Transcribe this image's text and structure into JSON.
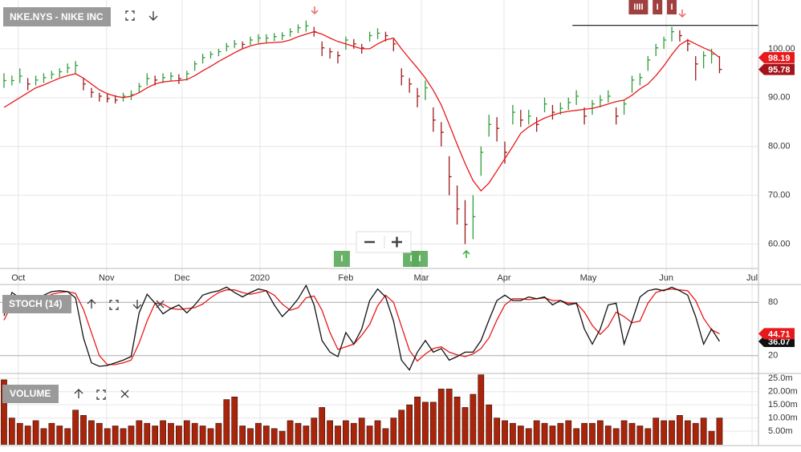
{
  "chart_data": [
    {
      "type": "ohlc",
      "title": "NKE.NYS - NIKE INC",
      "high": [
        95,
        94.5,
        96,
        94,
        94.5,
        95,
        95.5,
        96,
        97,
        97.5,
        94,
        92,
        91,
        90.8,
        90.5,
        91,
        91.5,
        93,
        95,
        94.5,
        95,
        95.2,
        94.8,
        95.5,
        97.5,
        99,
        99.5,
        100,
        101.2,
        101.8,
        101.5,
        102.5,
        103,
        103,
        103.2,
        103.4,
        104.2,
        105,
        105.8,
        104.5,
        101.5,
        100.2,
        99.5,
        102.5,
        102,
        101,
        103.5,
        104.2,
        103.5,
        102,
        96,
        94,
        92,
        93.5,
        88,
        85,
        78,
        72,
        69,
        70,
        80,
        86.5,
        86,
        81,
        88.5,
        87.5,
        87.5,
        86,
        90,
        88.5,
        89,
        90,
        91.5,
        88,
        89.5,
        90.5,
        91.5,
        88,
        89.5,
        94.5,
        95,
        98.5,
        101,
        102.5,
        104.5,
        103.8,
        102,
        98.5,
        99.5,
        100,
        98.5
      ],
      "low": [
        92,
        92.5,
        93,
        91.5,
        92.5,
        93,
        93.8,
        94.2,
        95,
        95,
        91.5,
        90,
        89.2,
        89,
        88.8,
        89.2,
        89.5,
        91,
        92.5,
        92.5,
        93,
        93.5,
        92.8,
        93.5,
        95.5,
        97,
        98,
        98.5,
        99.5,
        100.2,
        100,
        100.8,
        101.2,
        101.3,
        101.6,
        101.8,
        102.5,
        103.2,
        103.5,
        102.5,
        98.5,
        98,
        97,
        99.8,
        100,
        99,
        101.5,
        102,
        101.5,
        99.5,
        92.5,
        91,
        88,
        89.5,
        83,
        80,
        70,
        64,
        60,
        61,
        74,
        82,
        81,
        76.5,
        84.5,
        84,
        84.5,
        83,
        87,
        85.5,
        86.5,
        87.5,
        88.5,
        84.5,
        86.5,
        88,
        89,
        84.5,
        86.5,
        91,
        92.5,
        95.5,
        98.5,
        100,
        101.5,
        101.5,
        99.5,
        93.5,
        96,
        97,
        95
      ],
      "close": [
        93.5,
        93.5,
        94.4,
        92.8,
        93.6,
        94.1,
        94.8,
        95.3,
        96.1,
        96.6,
        92.8,
        91.1,
        90.3,
        89.8,
        89.5,
        90.3,
        90.6,
        92.3,
        93.9,
        93.6,
        94.1,
        94.4,
        93.9,
        94.9,
        96.9,
        98.2,
        98.9,
        99.4,
        100.5,
        101,
        100.9,
        101.8,
        102.2,
        102.2,
        102.5,
        102.7,
        103.5,
        104.3,
        104.7,
        103.5,
        100.2,
        99.4,
        98.6,
        101.8,
        101,
        100.2,
        102.7,
        103.2,
        102.7,
        101,
        94.4,
        92.8,
        90.3,
        92,
        85.4,
        82.9,
        73.8,
        67.2,
        64,
        65.6,
        78.8,
        84.5,
        83.7,
        78.8,
        87,
        85.4,
        86.2,
        84.5,
        88.7,
        87,
        87.8,
        89,
        90.3,
        86.2,
        88.7,
        89.5,
        90.3,
        86.2,
        88.7,
        93.6,
        94.1,
        97.7,
        100.2,
        101.8,
        103.5,
        102.7,
        101,
        96.9,
        98.6,
        98.9,
        95.78
      ],
      "up_color": "#2e9e3a",
      "down_color": "#9e1a1a",
      "last_label_color": "#a3131b",
      "sma": {
        "color": "#e8191b",
        "values": [
          88,
          89,
          90,
          91,
          92,
          92.6,
          93.3,
          94,
          94.5,
          94.9,
          94,
          92.8,
          91.6,
          90.8,
          90.3,
          90,
          90.3,
          91,
          92,
          92.8,
          93.2,
          93.4,
          93.5,
          93.7,
          94.5,
          95.5,
          96.4,
          97.4,
          98.3,
          99.2,
          100,
          100.6,
          101,
          101.2,
          101.3,
          101.4,
          101.8,
          102.5,
          103,
          103.5,
          103,
          102.2,
          101.5,
          101,
          100.5,
          100,
          100,
          101,
          101.8,
          102.2,
          100,
          98,
          96.1,
          94,
          91.5,
          88.5,
          84.5,
          80.4,
          76.5,
          73,
          70.9,
          72.5,
          75,
          77.5,
          80,
          82.7,
          84,
          85,
          85.8,
          86.4,
          86.9,
          87.2,
          87.4,
          87.6,
          87.8,
          88.2,
          88.7,
          89.2,
          89.5,
          90.5,
          91.8,
          92.8,
          94.5,
          96.5,
          98.8,
          100.8,
          101.8,
          101,
          100.2,
          99.5,
          98.19
        ]
      },
      "hline": {
        "value": 104.8,
        "x": [
          71.5,
          94.9
        ]
      },
      "events_top": [
        {
          "label": "IIII",
          "x": 79.8
        },
        {
          "label": "I",
          "x": 82.2
        },
        {
          "label": "I",
          "x": 84.0
        }
      ],
      "events_bottom": [
        {
          "label": "I",
          "x": 42.5
        },
        {
          "label": "I",
          "x": 51.2
        },
        {
          "label": "I",
          "x": 52.3
        }
      ],
      "xlim": [
        -0.5,
        94.9
      ],
      "xticks": [
        {
          "value": 1.8,
          "label": "Oct"
        },
        {
          "value": 12.9,
          "label": "Nov"
        },
        {
          "value": 22.4,
          "label": "Dec"
        },
        {
          "value": 32.2,
          "label": "2020"
        },
        {
          "value": 43.0,
          "label": "Feb"
        },
        {
          "value": 52.5,
          "label": "Mar"
        },
        {
          "value": 62.9,
          "label": "Apr"
        },
        {
          "value": 73.5,
          "label": "May"
        },
        {
          "value": 83.3,
          "label": "Jun"
        },
        {
          "value": 94.1,
          "label": "Jul"
        }
      ],
      "ylim": [
        55,
        110
      ],
      "yticks": [
        {
          "value": 60,
          "label": "60.00"
        },
        {
          "value": 70,
          "label": "70.00"
        },
        {
          "value": 80,
          "label": "80.00"
        },
        {
          "value": 90,
          "label": "90.00"
        },
        {
          "value": 100,
          "label": "100.00"
        }
      ],
      "grid": true
    },
    {
      "type": "stoch",
      "title": "STOCH (14)",
      "k": {
        "color": "#111111",
        "values": [
          65,
          91,
          85,
          78,
          80,
          88,
          92,
          93,
          92,
          85,
          40,
          12,
          8,
          9,
          12,
          15,
          19,
          68,
          89,
          79,
          67,
          73,
          77,
          68,
          77,
          88,
          91,
          93,
          97,
          91,
          86,
          91,
          95,
          93,
          77,
          64,
          73,
          84,
          99,
          77,
          37,
          24,
          19,
          46,
          33,
          50,
          82,
          95,
          86,
          59,
          15,
          4,
          24,
          37,
          24,
          28,
          15,
          19,
          24,
          24,
          37,
          60,
          82,
          88,
          82,
          82,
          86,
          84,
          86,
          77,
          82,
          77,
          79,
          50,
          33,
          50,
          77,
          79,
          33,
          59,
          86,
          93,
          95,
          93,
          97,
          93,
          88,
          64,
          33,
          50,
          36.07
        ]
      },
      "d": {
        "color": "#e8191b",
        "values": [
          60,
          78,
          86,
          84,
          81,
          84,
          89,
          91,
          92,
          90,
          72,
          46,
          20,
          10,
          10,
          12,
          15,
          34,
          59,
          79,
          78,
          73,
          72,
          73,
          74,
          78,
          85,
          91,
          94,
          94,
          91,
          89,
          91,
          93,
          88,
          78,
          71,
          74,
          85,
          87,
          71,
          46,
          27,
          30,
          33,
          43,
          55,
          76,
          88,
          80,
          53,
          26,
          14,
          22,
          28,
          30,
          24,
          21,
          19,
          22,
          28,
          40,
          60,
          77,
          84,
          84,
          83,
          84,
          85,
          82,
          82,
          79,
          79,
          69,
          54,
          44,
          53,
          69,
          64,
          57,
          59,
          79,
          91,
          94,
          95,
          94,
          93,
          82,
          62,
          49,
          44.71
        ]
      },
      "ylim": [
        0,
        100
      ],
      "yticks": [
        20,
        80
      ],
      "grid": true
    },
    {
      "type": "volume",
      "title": "VOLUME",
      "color": "#a8250c",
      "values": [
        24.5,
        10,
        8,
        7,
        9,
        6,
        8,
        7,
        6,
        13,
        11,
        9,
        8,
        6,
        7,
        6,
        7,
        9,
        8,
        7,
        9,
        8,
        7,
        9,
        8,
        7,
        6,
        8,
        17,
        18,
        7,
        6,
        8,
        7,
        6,
        5,
        9,
        8,
        7,
        10,
        14,
        9,
        7,
        9,
        8,
        10,
        7,
        9,
        6,
        10,
        13,
        15,
        18,
        16,
        16,
        21,
        21,
        18,
        14,
        19,
        26.4,
        15,
        10,
        9,
        8,
        7,
        6,
        9,
        8,
        7,
        8,
        9,
        6,
        8,
        8,
        9,
        7,
        6,
        9,
        8,
        7,
        6,
        10,
        9,
        9,
        11,
        9,
        8,
        10,
        5,
        10
      ],
      "ylim": [
        0,
        26.6
      ],
      "yticks": [
        {
          "value": 5,
          "label": "5.00m"
        },
        {
          "value": 10,
          "label": "10.00m"
        },
        {
          "value": 15,
          "label": "15.00m"
        },
        {
          "value": 20,
          "label": "20.00m"
        },
        {
          "value": 25,
          "label": "25.0m"
        }
      ],
      "grid": true
    }
  ]
}
